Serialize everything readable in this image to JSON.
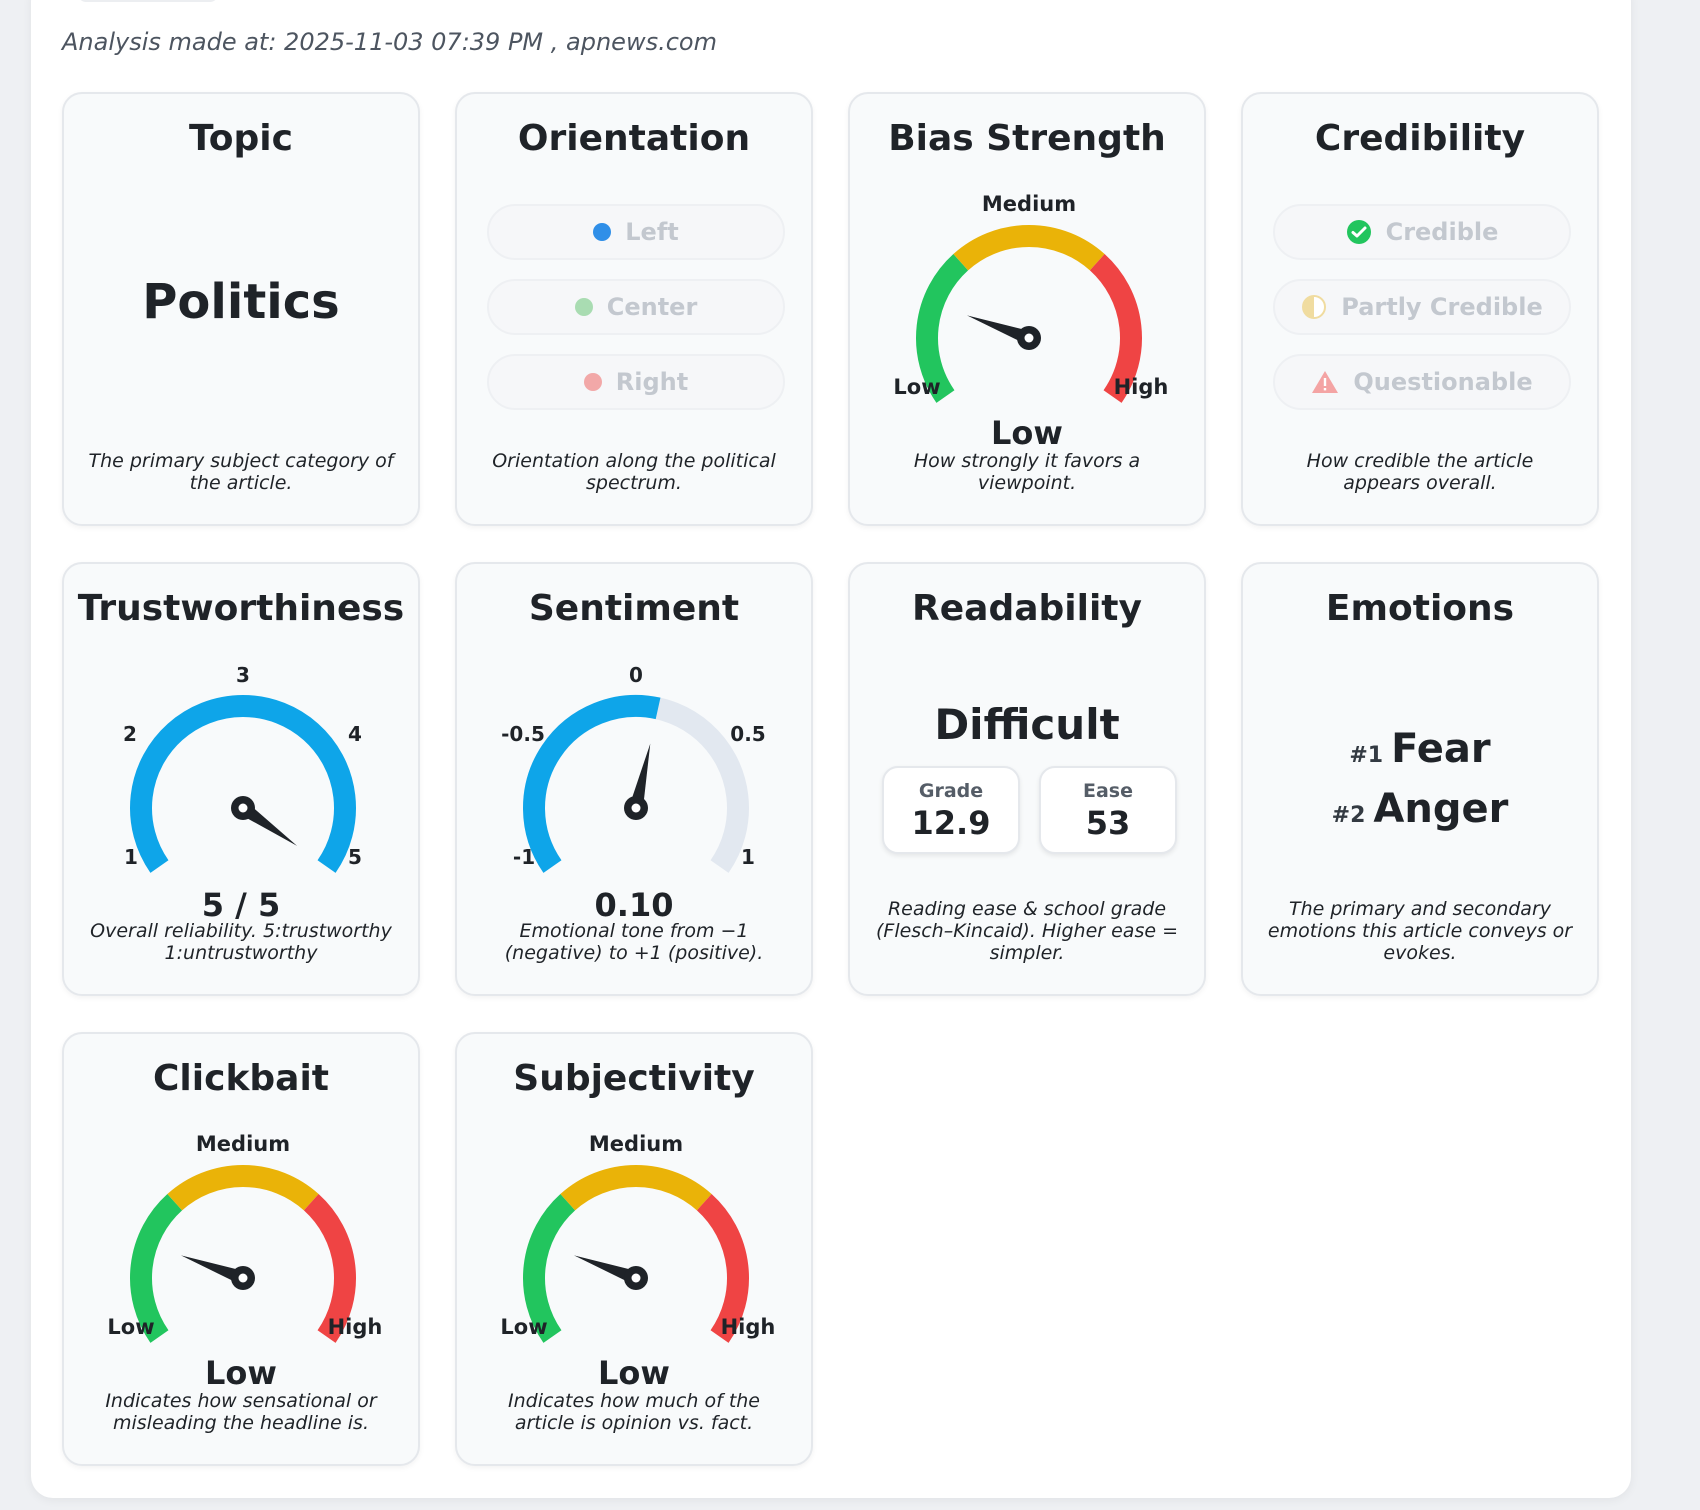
{
  "meta": {
    "analysis_label": "Analysis made at: 2025-11-03 07:39 PM , apnews.com"
  },
  "colors": {
    "green": "#22c55e",
    "yellow": "#eab308",
    "red": "#ef4444",
    "blue": "#0ea5e9",
    "track": "#e2e8f0",
    "dark": "#1f2328"
  },
  "topic": {
    "title": "Topic",
    "value": "Politics",
    "description": "The primary subject category of the article."
  },
  "orientation": {
    "title": "Orientation",
    "options": [
      {
        "label": "Left",
        "selected": true,
        "dot_color": "#2f8fe8"
      },
      {
        "label": "Center",
        "selected": false,
        "dot_color": "#a9dcb2"
      },
      {
        "label": "Right",
        "selected": false,
        "dot_color": "#f2a8a8"
      }
    ],
    "description": "Orientation along the political spectrum."
  },
  "bias_strength": {
    "title": "Bias Strength",
    "top_label": "Medium",
    "low_label": "Low",
    "high_label": "High",
    "value_label": "Low",
    "level": 0.22,
    "description": "How strongly it favors a viewpoint."
  },
  "credibility": {
    "title": "Credibility",
    "options": [
      {
        "label": "Credible",
        "selected": true,
        "icon": "check-circle-icon"
      },
      {
        "label": "Partly Credible",
        "selected": false,
        "icon": "half-circle-icon"
      },
      {
        "label": "Questionable",
        "selected": false,
        "icon": "warning-triangle-icon"
      }
    ],
    "description": "How credible the article appears overall."
  },
  "trustworthiness": {
    "title": "Trustworthiness",
    "ticks": [
      "1",
      "2",
      "3",
      "4",
      "5"
    ],
    "value": 5,
    "min": 1,
    "max": 5,
    "value_label": "5 / 5",
    "description": "Overall reliability. 5:trustworthy 1:untrustworthy"
  },
  "sentiment": {
    "title": "Sentiment",
    "ticks": [
      "-1",
      "-0.5",
      "0",
      "0.5",
      "1"
    ],
    "value": 0.1,
    "min": -1,
    "max": 1,
    "value_label": "0.10",
    "description": "Emotional tone from −1 (negative) to +1 (positive)."
  },
  "readability": {
    "title": "Readability",
    "value": "Difficult",
    "grade_label": "Grade",
    "grade_value": "12.9",
    "ease_label": "Ease",
    "ease_value": "53",
    "description": "Reading ease & school grade (Flesch–Kincaid). Higher ease = simpler."
  },
  "emotions": {
    "title": "Emotions",
    "items": [
      {
        "rank": "#1",
        "name": "Fear"
      },
      {
        "rank": "#2",
        "name": "Anger"
      }
    ],
    "description": "The primary and secondary emotions this article conveys or evokes."
  },
  "clickbait": {
    "title": "Clickbait",
    "top_label": "Medium",
    "low_label": "Low",
    "high_label": "High",
    "value_label": "Low",
    "level": 0.22,
    "description": "Indicates how sensational or misleading the headline is."
  },
  "subjectivity": {
    "title": "Subjectivity",
    "top_label": "Medium",
    "low_label": "Low",
    "high_label": "High",
    "value_label": "Low",
    "level": 0.22,
    "description": "Indicates how much of the article is opinion vs. fact."
  }
}
